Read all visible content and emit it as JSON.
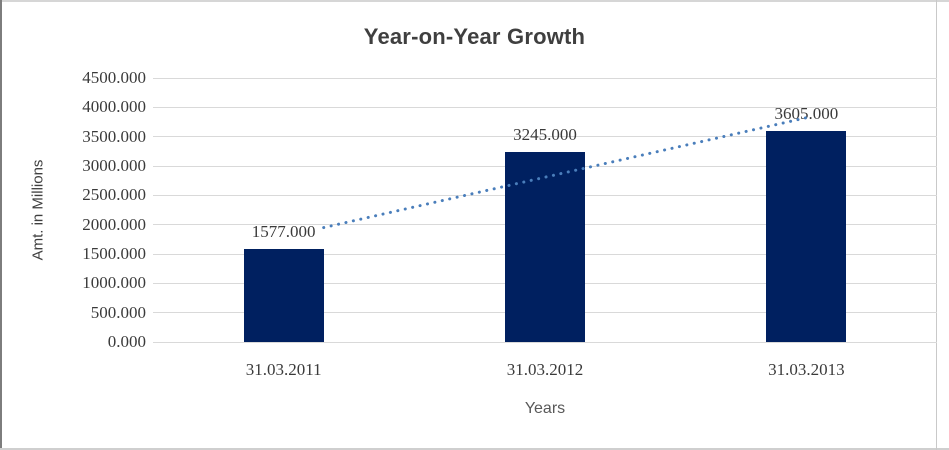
{
  "chart_data": {
    "type": "bar",
    "title": "Year-on-Year Growth",
    "categories": [
      "31.03.2011",
      "31.03.2012",
      "31.03.2013"
    ],
    "values": [
      1577,
      3245,
      3605
    ],
    "value_labels": [
      "1577.000",
      "3245.000",
      "3605.000"
    ],
    "xlabel": "Years",
    "ylabel": "Amt. in Millions",
    "ylim": [
      0,
      4500
    ],
    "ytick_step": 500,
    "ytick_labels": [
      "0.000",
      "500.000",
      "1000.000",
      "1500.000",
      "2000.000",
      "2500.000",
      "3000.000",
      "3500.000",
      "4000.000",
      "4500.000"
    ],
    "grid": true,
    "legend": "none",
    "trendline": {
      "type": "linear",
      "style": "dotted",
      "color": "#4a7ebb"
    },
    "colors": {
      "bar": "#002060",
      "gridline": "#d9d9d9",
      "text": "#3a3a3a",
      "frame": "#cfcfcf"
    }
  }
}
